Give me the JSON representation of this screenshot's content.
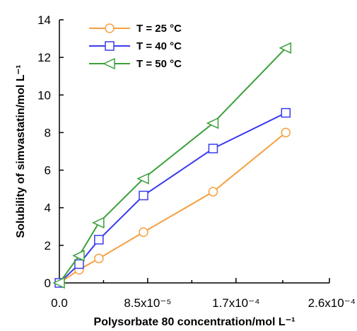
{
  "chart_data": {
    "type": "line",
    "x_values": [
      0,
      1.9e-05,
      3.8e-05,
      8.1e-05,
      0.000148,
      0.000218
    ],
    "x_ticks": [
      {
        "value": 0,
        "label": "0.0"
      },
      {
        "value": 8.5e-05,
        "label": "8.5x10⁻⁵"
      },
      {
        "value": 0.00017,
        "label": "1.7x10⁻⁴"
      },
      {
        "value": 0.00026,
        "label": "2.6x10⁻⁴"
      }
    ],
    "xlim": [
      0,
      0.00026
    ],
    "ylim": [
      0,
      14
    ],
    "y_ticks": [
      0,
      2,
      4,
      6,
      8,
      10,
      12,
      14
    ],
    "xlabel": "Polysorbate 80 concentration/mol L⁻¹",
    "ylabel": "Solubility of simvastatin/mol L⁻¹",
    "legend_position": "top-left",
    "series": [
      {
        "name": "T = 25 °C",
        "color": "#f5a040",
        "marker": "circle",
        "values": [
          0.0,
          0.7,
          1.3,
          2.7,
          4.85,
          8.0
        ]
      },
      {
        "name": "T = 40 °C",
        "color": "#3a3af0",
        "marker": "square",
        "values": [
          0.0,
          1.0,
          2.3,
          4.65,
          7.15,
          9.05
        ]
      },
      {
        "name": "T = 50 °C",
        "color": "#3aa03a",
        "marker": "triangle-left",
        "values": [
          0.0,
          1.45,
          3.2,
          5.55,
          8.5,
          12.5
        ]
      }
    ]
  }
}
